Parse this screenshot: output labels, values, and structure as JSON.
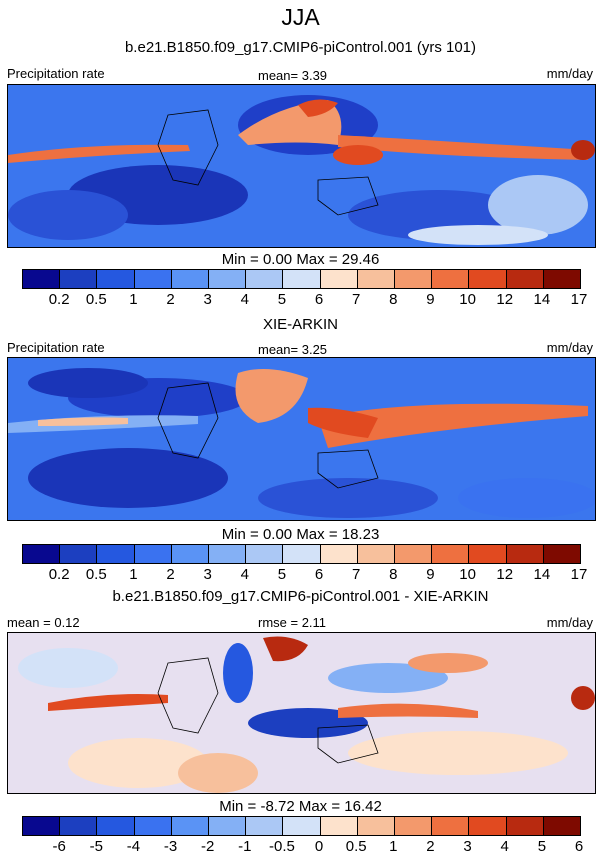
{
  "title": "JJA",
  "panels": [
    {
      "subtitle": "b.e21.B1850.f09_g17.CMIP6-piControl.001 (yrs 101)",
      "left_label": "Precipitation rate",
      "center_label": "mean=   3.39",
      "units": "mm/day",
      "minmax": "Min =   0.00 Max =  29.46"
    },
    {
      "subtitle": "XIE-ARKIN",
      "left_label": "Precipitation rate",
      "center_label": "mean=   3.25",
      "units": "mm/day",
      "minmax": "Min =   0.00 Max =  18.23"
    },
    {
      "subtitle": "b.e21.B1850.f09_g17.CMIP6-piControl.001 - XIE-ARKIN",
      "left_label": "mean =   0.12",
      "center_label": "rmse =   2.11",
      "units": "mm/day",
      "minmax": "Min =  -8.72 Max =  16.42"
    }
  ],
  "colorbars": {
    "precip_ticks": [
      "0.2",
      "0.5",
      "1",
      "2",
      "3",
      "4",
      "5",
      "6",
      "7",
      "8",
      "9",
      "10",
      "12",
      "14",
      "17"
    ],
    "precip_colors": [
      "#08088f",
      "#1c3fc0",
      "#2558e0",
      "#3a72f0",
      "#5a93f5",
      "#84b0f5",
      "#abc8f5",
      "#d3e2f8",
      "#fde2cc",
      "#f7c09c",
      "#f3996c",
      "#ee7040",
      "#e14a20",
      "#b82a10",
      "#7e0a00"
    ],
    "diff_ticks": [
      "-6",
      "-5",
      "-4",
      "-3",
      "-2",
      "-1",
      "-0.5",
      "0",
      "0.5",
      "1",
      "2",
      "3",
      "4",
      "5",
      "6"
    ],
    "diff_colors": [
      "#08088f",
      "#1c3fc0",
      "#2558e0",
      "#3a72f0",
      "#5a93f5",
      "#84b0f5",
      "#abc8f5",
      "#d3e2f8",
      "#fde2cc",
      "#f7c09c",
      "#f3996c",
      "#ee7040",
      "#e14a20",
      "#b82a10",
      "#7e0a00"
    ]
  }
}
